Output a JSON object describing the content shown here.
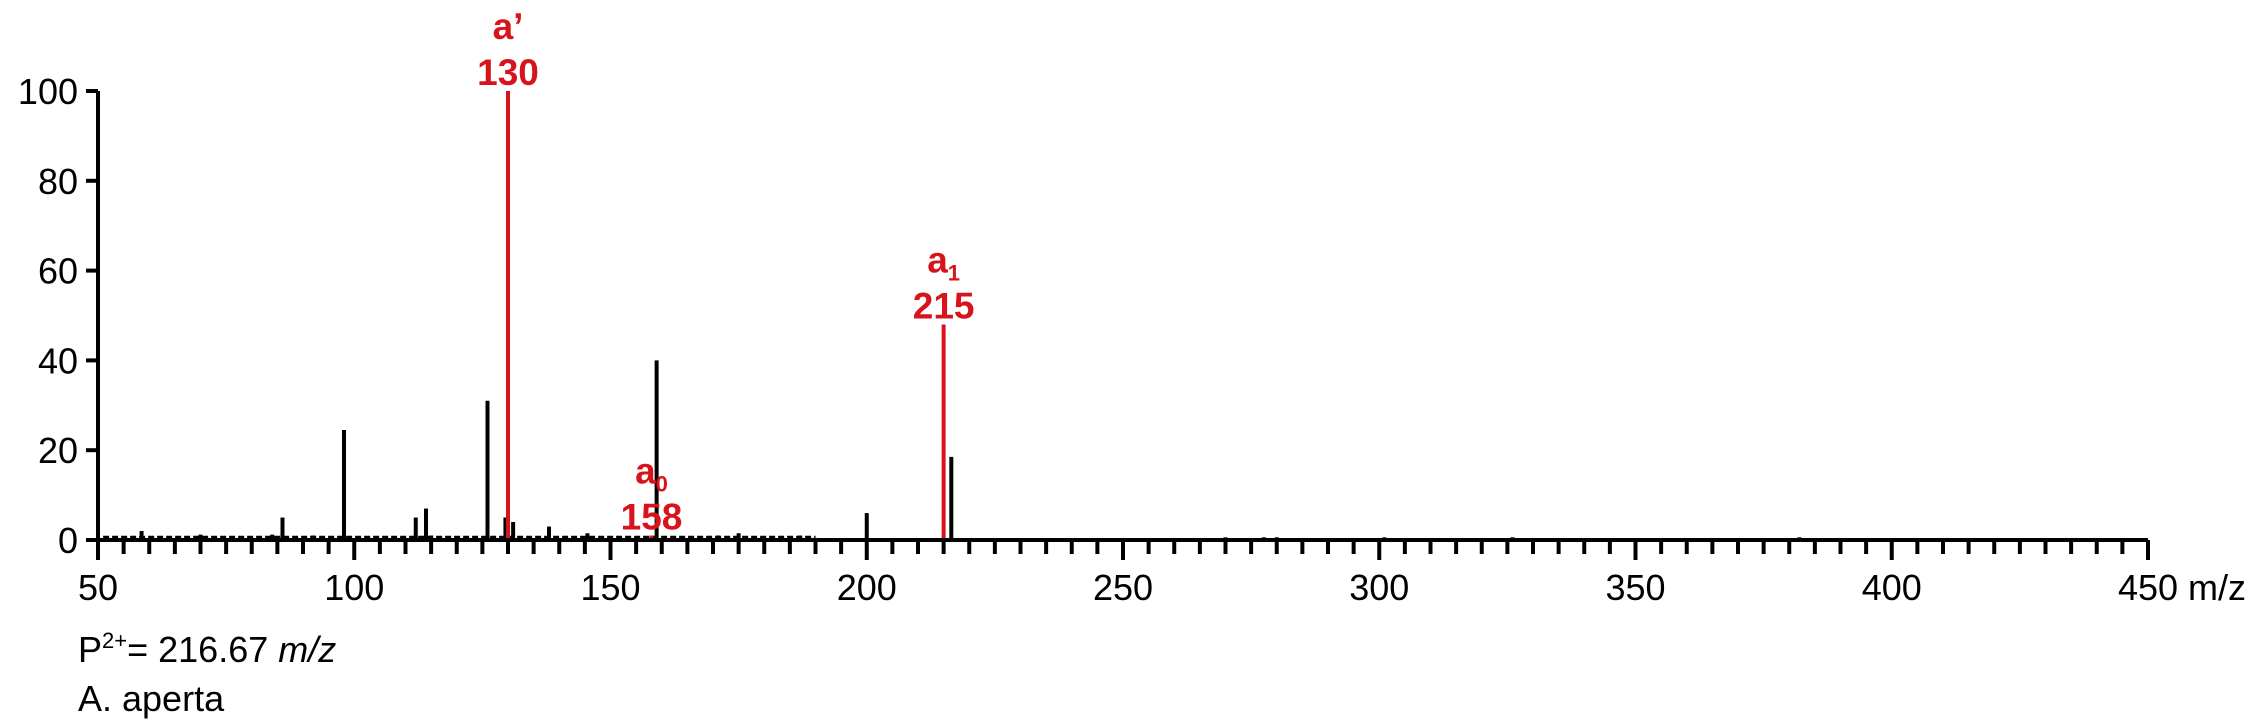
{
  "chart_data": {
    "type": "bar",
    "subtype": "mass-spectrum",
    "xlim": [
      50,
      450
    ],
    "ylim": [
      0,
      100
    ],
    "x_major_ticks": [
      50,
      100,
      150,
      200,
      250,
      300,
      350,
      400,
      450
    ],
    "x_minor_step": 5,
    "y_ticks": [
      0,
      20,
      40,
      60,
      80,
      100
    ],
    "x_unit_label": "m/z",
    "grid": false,
    "peaks": [
      {
        "x": 58.5,
        "y": 2
      },
      {
        "x": 70,
        "y": 1.2
      },
      {
        "x": 84,
        "y": 1.2
      },
      {
        "x": 86,
        "y": 5
      },
      {
        "x": 92,
        "y": 1
      },
      {
        "x": 98,
        "y": 24.5
      },
      {
        "x": 112,
        "y": 5
      },
      {
        "x": 114,
        "y": 7
      },
      {
        "x": 115,
        "y": 1
      },
      {
        "x": 126,
        "y": 31
      },
      {
        "x": 129.5,
        "y": 5
      },
      {
        "x": 131,
        "y": 4
      },
      {
        "x": 138,
        "y": 3
      },
      {
        "x": 145.5,
        "y": 1.5
      },
      {
        "x": 159,
        "y": 40
      },
      {
        "x": 171,
        "y": 1
      },
      {
        "x": 175,
        "y": 1.5
      },
      {
        "x": 187,
        "y": 1
      },
      {
        "x": 200,
        "y": 6
      },
      {
        "x": 216.5,
        "y": 18.5
      },
      {
        "x": 270,
        "y": 0.6
      },
      {
        "x": 277.5,
        "y": 0.6
      },
      {
        "x": 280,
        "y": 0.6
      },
      {
        "x": 301,
        "y": 0.6
      },
      {
        "x": 326,
        "y": 0.6
      },
      {
        "x": 382,
        "y": 0.6
      }
    ],
    "labeled_peaks": [
      {
        "x": 130,
        "y": 100,
        "name": "a’",
        "sub": "",
        "mz": "130"
      },
      {
        "x": 158,
        "y": 1,
        "name": "a",
        "sub": "0",
        "mz": "158"
      },
      {
        "x": 215,
        "y": 48,
        "name": "a",
        "sub": "1",
        "mz": "215"
      }
    ],
    "colors": {
      "axis": "#000000",
      "peaks": "#000000",
      "labeled": "#d7141c"
    }
  },
  "captions": {
    "precursor_prefix": "P",
    "precursor_charge": "2+",
    "precursor_value": "= 216.67",
    "precursor_unit": "m/z",
    "species": "A. aperta"
  }
}
